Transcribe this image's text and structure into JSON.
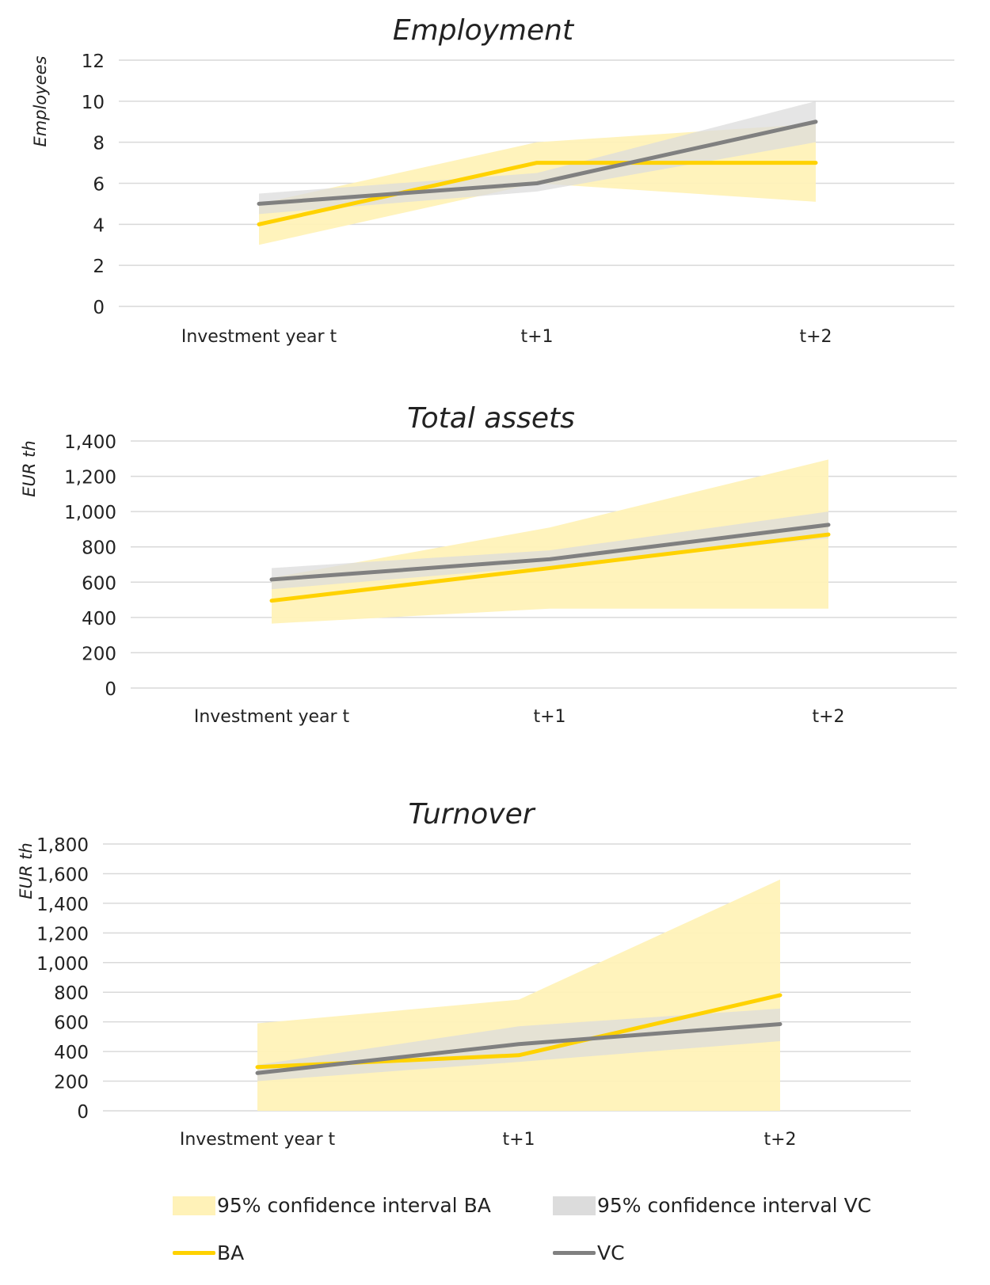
{
  "colors": {
    "ba_line": "#FFD200",
    "ba_band": "#FFF2B8",
    "vc_line": "#808080",
    "vc_band": "#DCDCDC",
    "grid": "#D9D9D9"
  },
  "legend": {
    "ba_ci": "95% confidence interval BA",
    "vc_ci": "95% confidence interval VC",
    "ba": "BA",
    "vc": "VC"
  },
  "chart_data": [
    {
      "type": "line",
      "title": "Employment",
      "ylabel": "Employees",
      "xlabel": "",
      "categories": [
        "Investment year t",
        "t+1",
        "t+2"
      ],
      "ylim": [
        0,
        12
      ],
      "yticks": [
        0,
        2,
        4,
        6,
        8,
        10,
        12
      ],
      "ytick_labels": [
        "0",
        "2",
        "4",
        "6",
        "8",
        "10",
        "12"
      ],
      "grid": true,
      "legend_position": "bottom",
      "series": [
        {
          "name": "BA",
          "values": [
            4,
            7,
            7
          ]
        },
        {
          "name": "VC",
          "values": [
            5,
            6,
            9
          ]
        }
      ],
      "bands": [
        {
          "name": "95% confidence interval BA",
          "lower": [
            3,
            6,
            5.1
          ],
          "upper": [
            5,
            8,
            8.9
          ]
        },
        {
          "name": "95% confidence interval VC",
          "lower": [
            4.5,
            5.6,
            8
          ],
          "upper": [
            5.5,
            6.5,
            10
          ]
        }
      ]
    },
    {
      "type": "line",
      "title": "Total assets",
      "ylabel": "EUR th",
      "xlabel": "",
      "categories": [
        "Investment year t",
        "t+1",
        "t+2"
      ],
      "ylim": [
        0,
        1400
      ],
      "yticks": [
        0,
        200,
        400,
        600,
        800,
        1000,
        1200,
        1400
      ],
      "ytick_labels": [
        "0",
        "200",
        "400",
        "600",
        "800",
        "1,000",
        "1,200",
        "1,400"
      ],
      "grid": true,
      "legend_position": "bottom",
      "series": [
        {
          "name": "BA",
          "values": [
            495,
            680,
            870
          ]
        },
        {
          "name": "VC",
          "values": [
            615,
            730,
            925
          ]
        }
      ],
      "bands": [
        {
          "name": "95% confidence interval BA",
          "lower": [
            365,
            450,
            450
          ],
          "upper": [
            625,
            910,
            1295
          ]
        },
        {
          "name": "95% confidence interval VC",
          "lower": [
            560,
            690,
            850
          ],
          "upper": [
            680,
            780,
            1000
          ]
        }
      ]
    },
    {
      "type": "line",
      "title": "Turnover",
      "ylabel": "EUR th",
      "xlabel": "",
      "categories": [
        "Investment year t",
        "t+1",
        "t+2"
      ],
      "ylim": [
        0,
        1800
      ],
      "yticks": [
        0,
        200,
        400,
        600,
        800,
        1000,
        1200,
        1400,
        1600,
        1800
      ],
      "ytick_labels": [
        "0",
        "200",
        "400",
        "600",
        "800",
        "1,000",
        "1,200",
        "1,400",
        "1,600",
        "1,800"
      ],
      "grid": true,
      "legend_position": "bottom",
      "series": [
        {
          "name": "BA",
          "values": [
            295,
            375,
            780
          ]
        },
        {
          "name": "VC",
          "values": [
            255,
            450,
            585
          ]
        }
      ],
      "bands": [
        {
          "name": "95% confidence interval BA",
          "lower": [
            0,
            0,
            0
          ],
          "upper": [
            590,
            750,
            1560
          ]
        },
        {
          "name": "95% confidence interval VC",
          "lower": [
            200,
            330,
            470
          ],
          "upper": [
            310,
            570,
            690
          ]
        }
      ]
    }
  ]
}
